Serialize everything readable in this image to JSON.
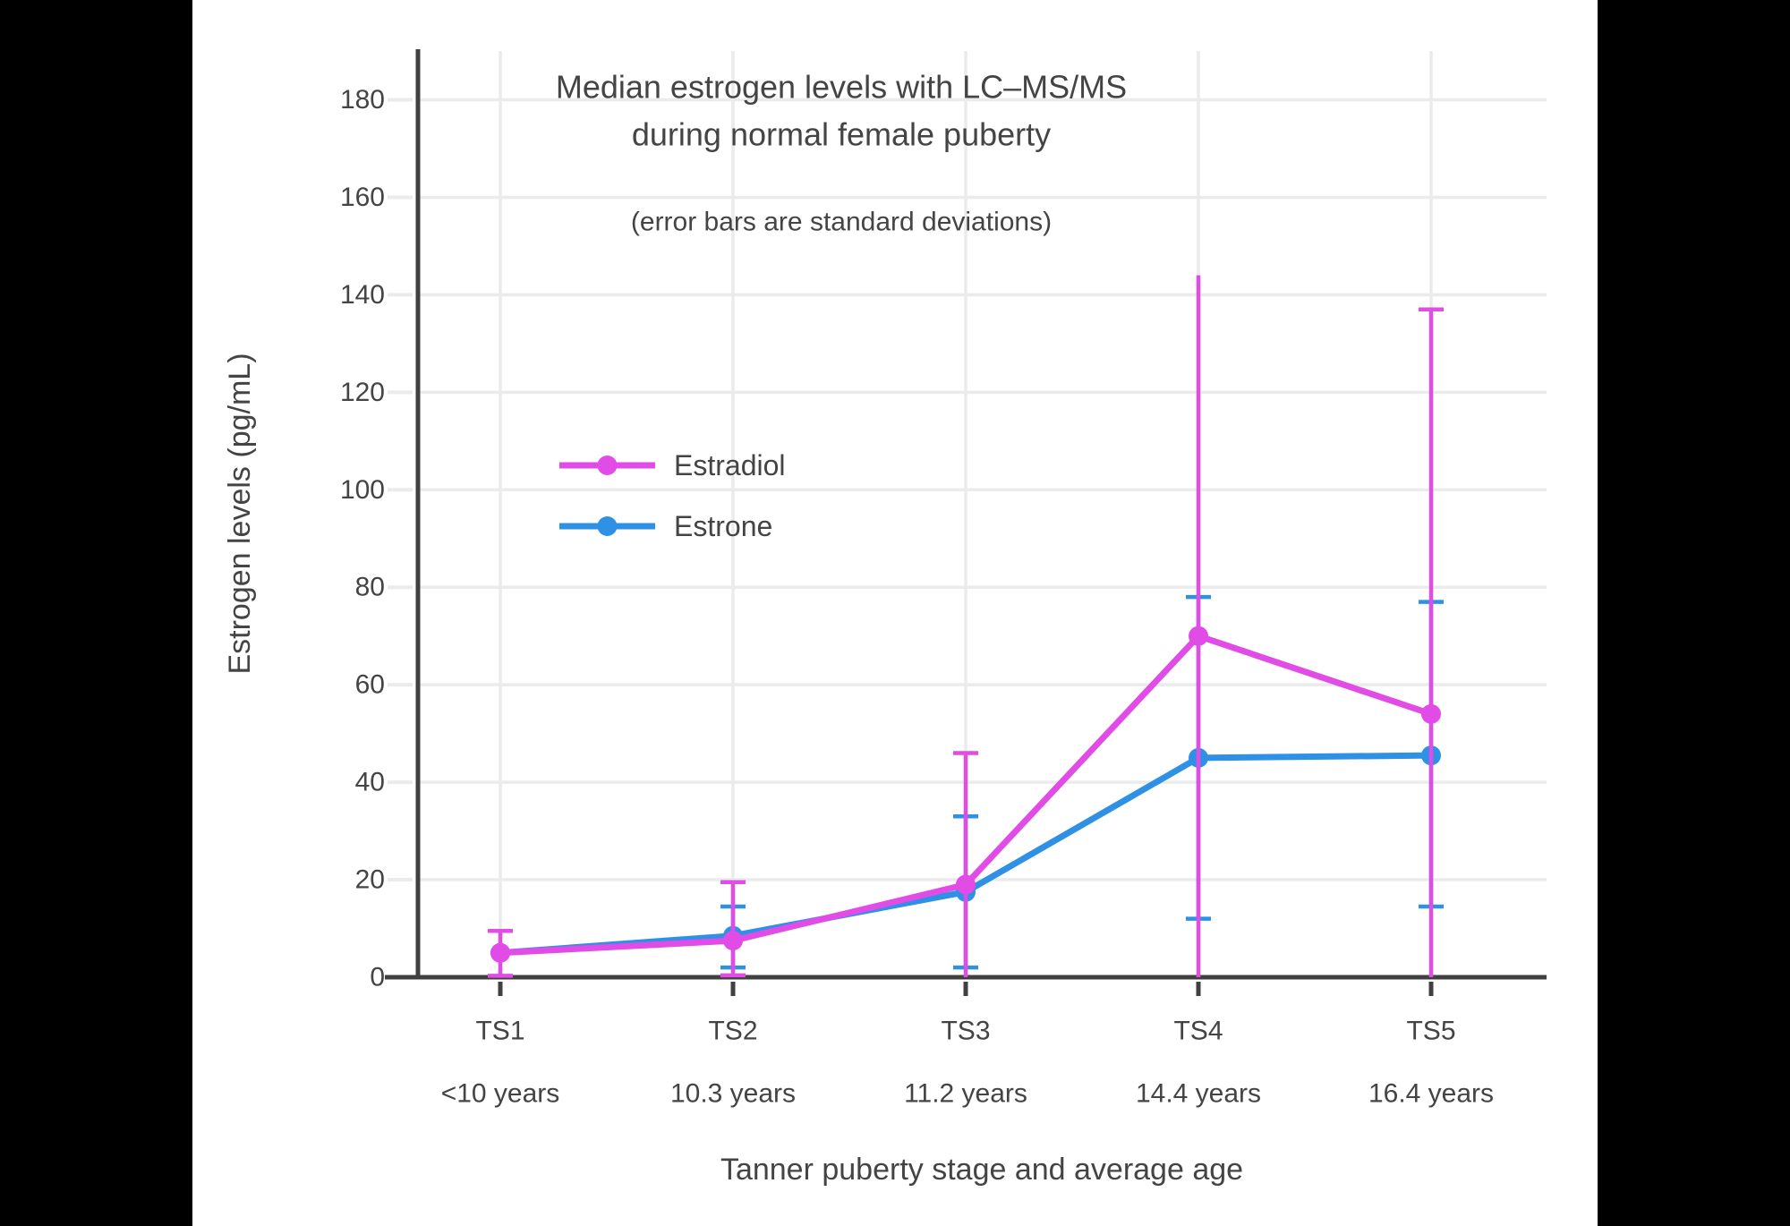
{
  "colors": {
    "letterbox": "#000000",
    "panel_bg": "#ffffff",
    "grid": "#ebebeb",
    "axis": "#404040",
    "text": "#444444",
    "estradiol": "#E24CE6",
    "estrone": "#2E91E5"
  },
  "title": {
    "line1": "Median estrogen levels with LC–MS/MS",
    "line2": "during normal female puberty",
    "subtitle": "(error bars are standard deviations)"
  },
  "legend": [
    {
      "label": "Estradiol",
      "color": "#E24CE6"
    },
    {
      "label": "Estrone",
      "color": "#2E91E5"
    }
  ],
  "chart_data": {
    "type": "line",
    "title": "Median estrogen levels with LC–MS/MS during normal female puberty",
    "subtitle": "(error bars are standard deviations)",
    "xlabel": "Tanner puberty stage and average age",
    "ylabel": "Estrogen levels (pg/mL)",
    "ylim": [
      0,
      190
    ],
    "yticks": [
      0,
      20,
      40,
      60,
      80,
      100,
      120,
      140,
      160,
      180
    ],
    "grid": true,
    "legend_position": "inside-upper-left",
    "categories": [
      "TS1",
      "TS2",
      "TS3",
      "TS4",
      "TS5"
    ],
    "category_sublabels": [
      "<10 years",
      "10.3 years",
      "11.2 years",
      "14.4 years",
      "16.4 years"
    ],
    "series": [
      {
        "name": "Estradiol",
        "color": "#E24CE6",
        "values": [
          5,
          7.5,
          19,
          70,
          54
        ],
        "error_low": [
          0.3,
          0.4,
          0,
          0,
          0
        ],
        "error_high": [
          9.5,
          19.5,
          46,
          144,
          137
        ],
        "caps_low": [
          true,
          true,
          false,
          false,
          false
        ],
        "caps_high": [
          true,
          true,
          true,
          false,
          true
        ]
      },
      {
        "name": "Estrone",
        "color": "#2E91E5",
        "values": [
          5,
          8.5,
          17.5,
          45,
          45.5
        ],
        "error_low": [
          null,
          2,
          2,
          12,
          14.5
        ],
        "error_high": [
          null,
          14.5,
          33,
          78,
          77
        ],
        "caps_low": [
          false,
          true,
          true,
          true,
          true
        ],
        "caps_high": [
          false,
          true,
          true,
          true,
          true
        ]
      }
    ]
  }
}
